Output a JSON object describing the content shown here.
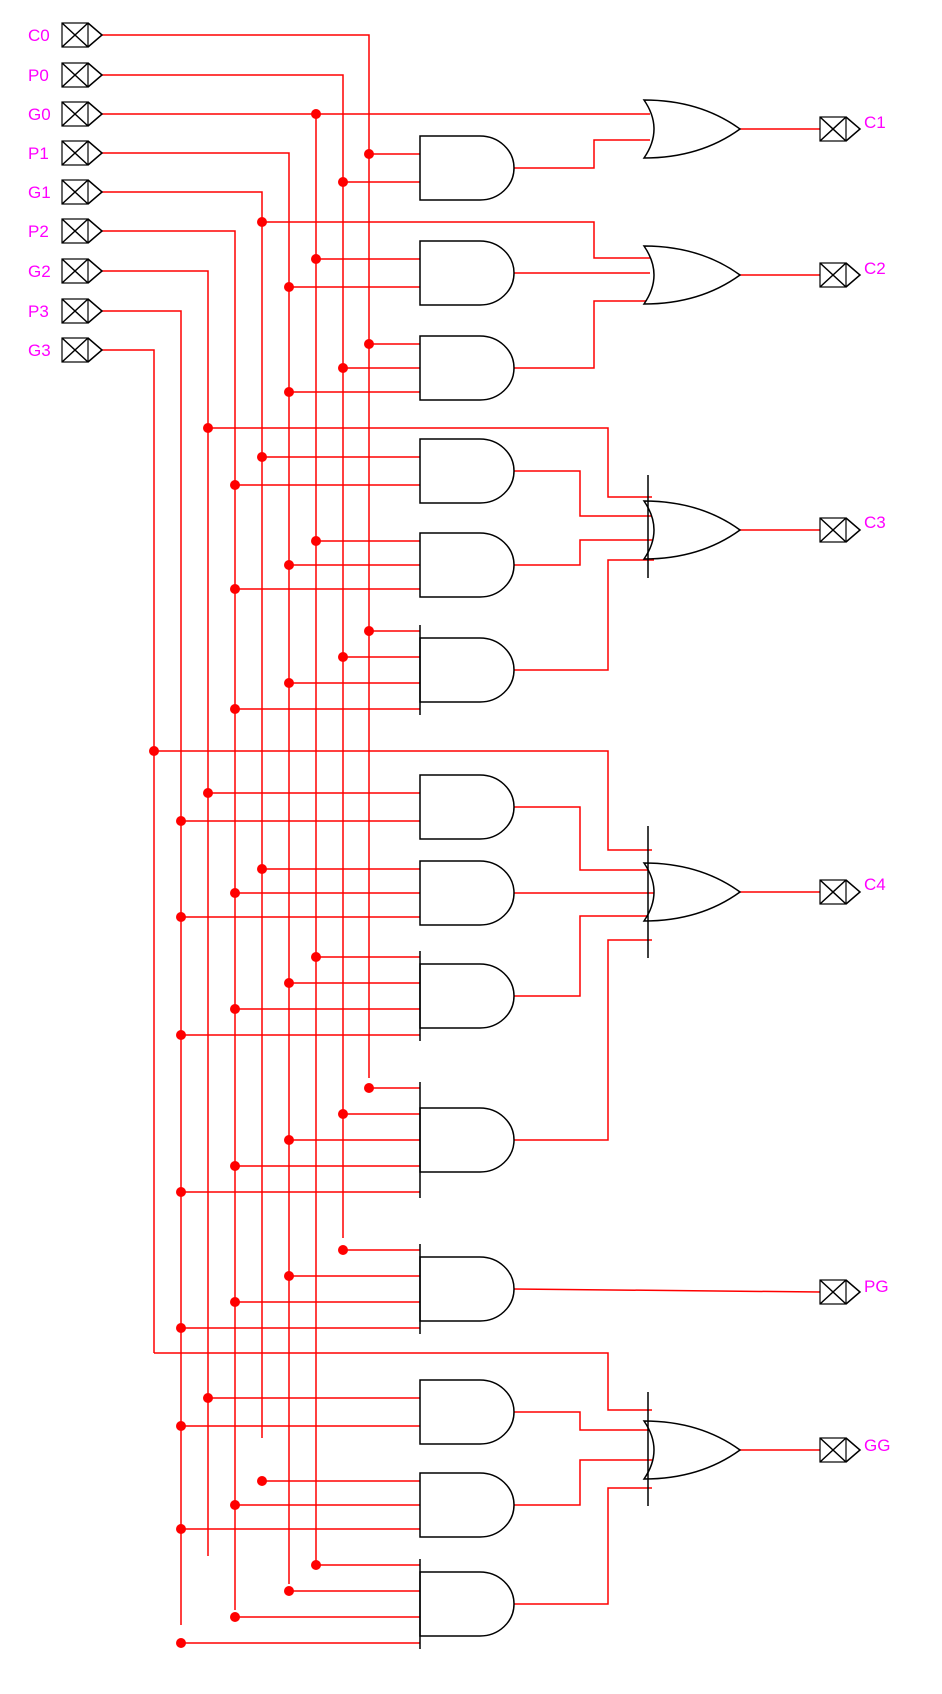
{
  "diagram": {
    "inputs": [
      "C0",
      "P0",
      "G0",
      "P1",
      "G1",
      "P2",
      "G2",
      "P3",
      "G3"
    ],
    "outputs": [
      "C1",
      "C2",
      "C3",
      "C4",
      "PG",
      "GG"
    ],
    "gate_types": {
      "and": "and",
      "or": "or"
    },
    "colors": {
      "wire": "#ff0000",
      "gate": "#000000",
      "label": "#ff00ff",
      "background": "#ffffff"
    }
  }
}
